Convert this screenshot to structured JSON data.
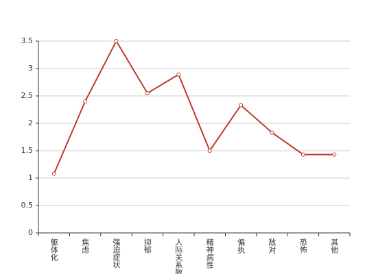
{
  "chart_data": {
    "type": "line",
    "categories": [
      "躯体化",
      "焦虑",
      "强迫症状",
      "抑郁",
      "人际关系敏感",
      "精神病性",
      "偏执",
      "敌对",
      "恐怖",
      "其他"
    ],
    "series": [
      {
        "color": "#c0392f",
        "values": [
          1.08,
          2.4,
          3.5,
          2.55,
          2.89,
          1.5,
          2.33,
          1.83,
          1.43,
          1.43
        ]
      }
    ],
    "ylim": [
      0,
      3.5
    ],
    "yticks": [
      0,
      0.5,
      1,
      1.5,
      2,
      2.5,
      3,
      3.5
    ],
    "grid": true
  }
}
